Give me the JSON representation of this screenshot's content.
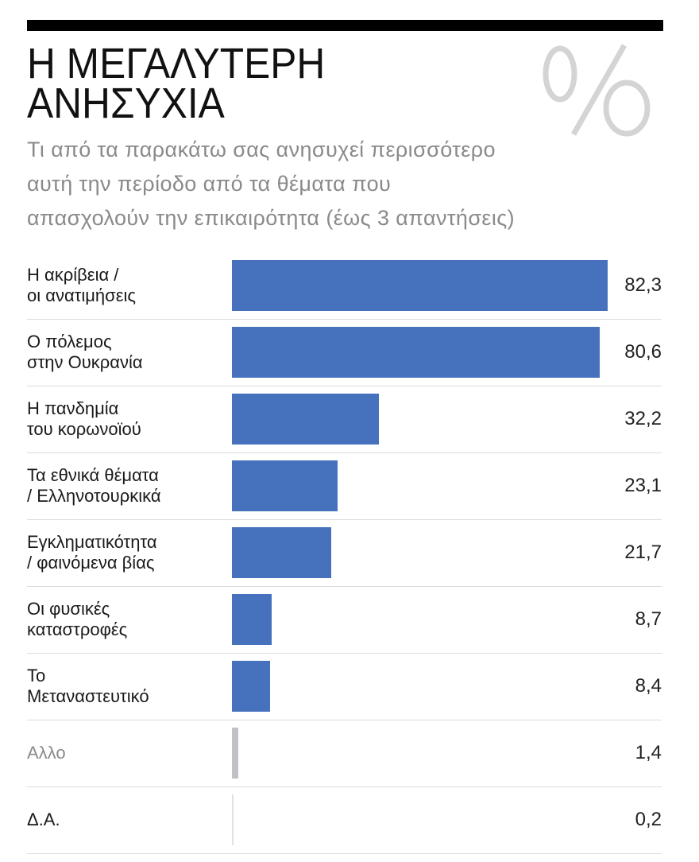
{
  "header": {
    "title_lines": [
      "Η ΜΕΓΑΛΥΤΕΡΗ",
      "ΑΝΗΣΥΧΙΑ"
    ],
    "symbol": "%",
    "subtitle_lines": [
      "Τι από τα παρακάτω σας ανησυχεί περισσότερο",
      "αυτή την περίοδο από τα θέματα που",
      "απασχολούν την επικαιρότητα (έως 3 απαντήσεις)"
    ]
  },
  "colors": {
    "bar_primary": "#4571bd",
    "bar_other": "#c2c2c6",
    "bar_na": "#e2e2e2",
    "label_default": "#1a1a1a",
    "label_muted": "#8a8a8a",
    "symbol": "#d4d4d4",
    "top_rule": "#000000"
  },
  "rows": [
    {
      "label_line1": "Η ακρίβεια /",
      "label_line2": "οι ανατιμήσεις",
      "value": 82.3,
      "value_label": "82,3",
      "bar_color": "#4571bd",
      "label_color": "#1a1a1a"
    },
    {
      "label_line1": "Ο πόλεμος",
      "label_line2": "στην Ουκρανία",
      "value": 80.6,
      "value_label": "80,6",
      "bar_color": "#4571bd",
      "label_color": "#1a1a1a"
    },
    {
      "label_line1": "Η πανδημία",
      "label_line2": "του κορωνοϊού",
      "value": 32.2,
      "value_label": "32,2",
      "bar_color": "#4571bd",
      "label_color": "#1a1a1a"
    },
    {
      "label_line1": "Τα εθνικά θέματα",
      "label_line2": "/ Ελληνοτουρκικά",
      "value": 23.1,
      "value_label": "23,1",
      "bar_color": "#4571bd",
      "label_color": "#1a1a1a"
    },
    {
      "label_line1": "Εγκληματικότητα",
      "label_line2": "/ φαινόμενα βίας",
      "value": 21.7,
      "value_label": "21,7",
      "bar_color": "#4571bd",
      "label_color": "#1a1a1a"
    },
    {
      "label_line1": "Οι φυσικές",
      "label_line2": "καταστροφές",
      "value": 8.7,
      "value_label": "8,7",
      "bar_color": "#4571bd",
      "label_color": "#1a1a1a"
    },
    {
      "label_line1": "Το",
      "label_line2": "Μεταναστευτικό",
      "value": 8.4,
      "value_label": "8,4",
      "bar_color": "#4571bd",
      "label_color": "#1a1a1a"
    },
    {
      "label_line1": "Αλλο",
      "label_line2": "",
      "value": 1.4,
      "value_label": "1,4",
      "bar_color": "#c2c2c6",
      "label_color": "#8a8a8a"
    },
    {
      "label_line1": "Δ.Α.",
      "label_line2": "",
      "value": 0.2,
      "value_label": "0,2",
      "bar_color": "#e2e2e2",
      "label_color": "#1a1a1a"
    }
  ],
  "chart_data": {
    "type": "bar",
    "orientation": "horizontal",
    "title": "Η ΜΕΓΑΛΥΤΕΡΗ ΑΝΗΣΥΧΙΑ",
    "subtitle": "Τι από τα παρακάτω σας ανησυχεί περισσότερο αυτή την περίοδο από τα θέματα που απασχολούν την επικαιρότητα (έως 3 απαντήσεις)",
    "unit": "%",
    "categories": [
      "Η ακρίβεια / οι ανατιμήσεις",
      "Ο πόλεμος στην Ουκρανία",
      "Η πανδημία του κορωνοϊού",
      "Τα εθνικά θέματα / Ελληνοτουρκικά",
      "Εγκληματικότητα / φαινόμενα βίας",
      "Οι φυσικές καταστροφές",
      "Το Μεταναστευτικό",
      "Αλλο",
      "Δ.Α."
    ],
    "values": [
      82.3,
      80.6,
      32.2,
      23.1,
      21.7,
      8.7,
      8.4,
      1.4,
      0.2
    ],
    "value_labels": [
      "82,3",
      "80,6",
      "32,2",
      "23,1",
      "21,7",
      "8,7",
      "8,4",
      "1,4",
      "0,2"
    ],
    "xlabel": "",
    "ylabel": "",
    "xlim": [
      0,
      85
    ],
    "grid": false,
    "legend": null,
    "data_labels": "right-aligned at row end"
  }
}
